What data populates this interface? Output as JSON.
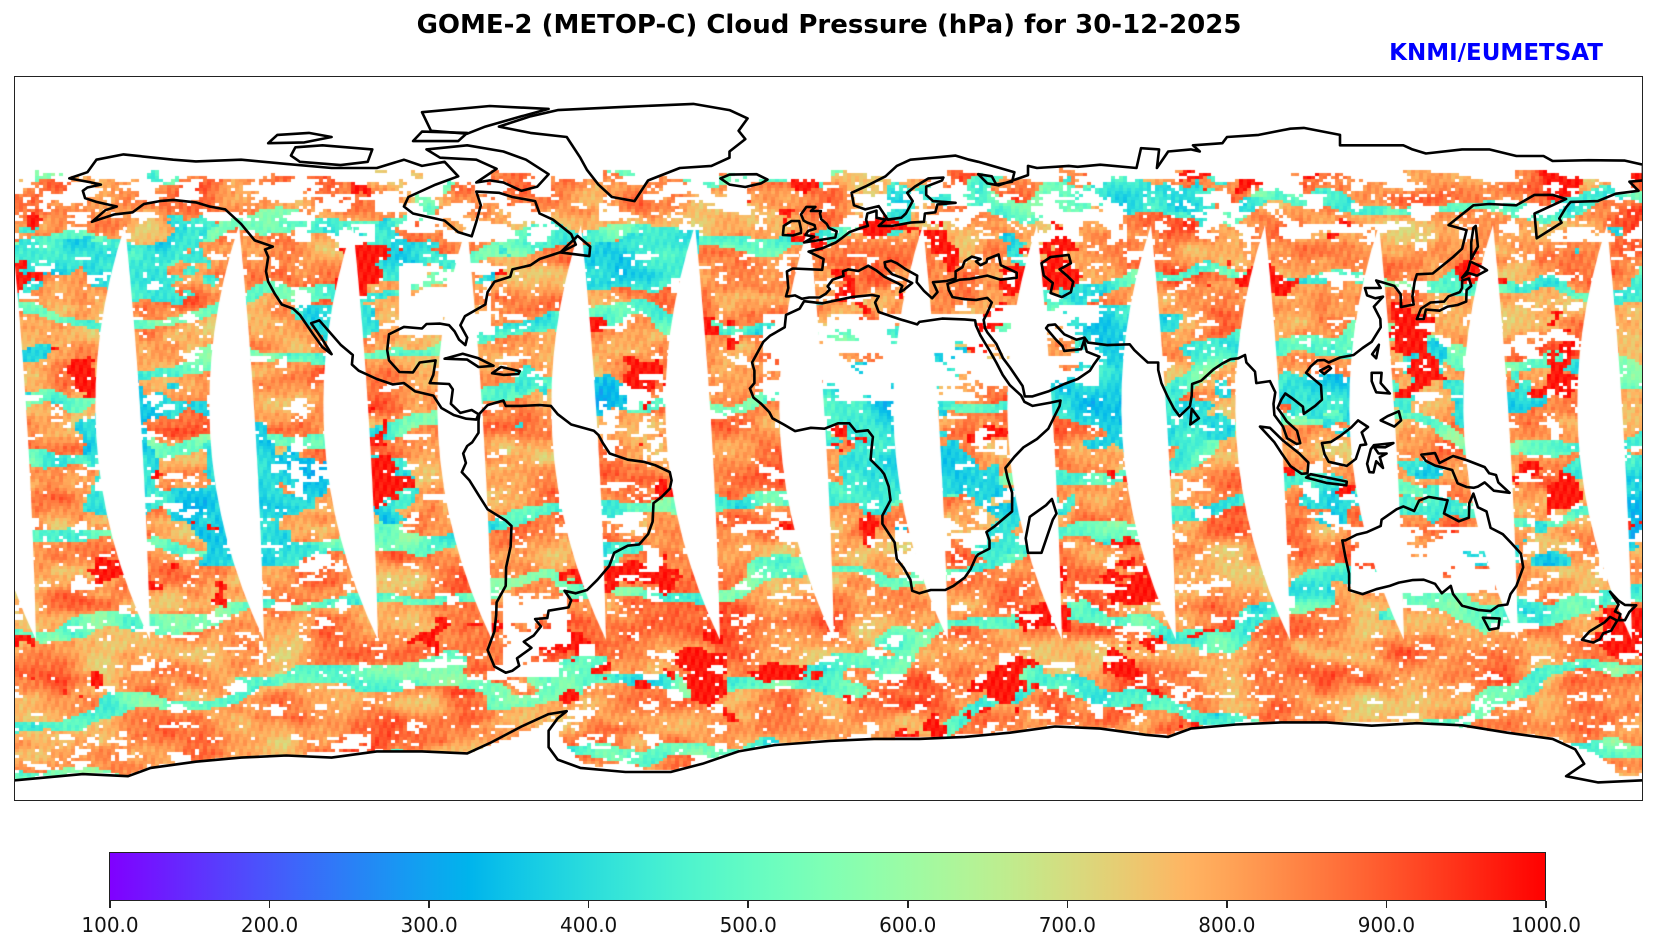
{
  "colors": {
    "credit": "#0000ff",
    "coastline": "#000000",
    "frame": "#222222",
    "no_data": "#ffffff"
  },
  "chart_data": {
    "type": "heatmap",
    "title": "GOME-2 (METOP-C) Cloud Pressure (hPa) for 30-12-2025",
    "xlabel": "",
    "ylabel": "",
    "annotations": [
      {
        "text": "KNMI/EUMETSAT",
        "position": "top-right"
      }
    ],
    "colorbar": {
      "orientation": "horizontal",
      "position": "bottom",
      "range": [
        100,
        1000
      ],
      "ticks": [
        100,
        200,
        300,
        400,
        500,
        600,
        700,
        800,
        900,
        1000
      ],
      "tick_labels": [
        "100.0",
        "200.0",
        "300.0",
        "400.0",
        "500.0",
        "600.0",
        "700.0",
        "800.0",
        "900.0",
        "1000.0"
      ],
      "colors": [
        "#8000ff",
        "#4062fa",
        "#00b4ec",
        "#40ecd4",
        "#80ffb4",
        "#bfec8e",
        "#ffb462",
        "#ff6232",
        "#ff0000"
      ]
    }
  }
}
